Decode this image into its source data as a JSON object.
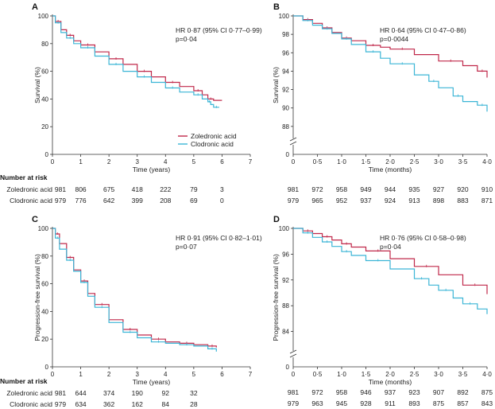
{
  "colors": {
    "zoledronic": "#c0284a",
    "clodronic": "#3bb5d6",
    "axis": "#333333"
  },
  "chart_data": [
    {
      "type": "line",
      "panel_label": "A",
      "xlabel": "Time (years)",
      "ylabel": "Survival (%)",
      "xlim": [
        0,
        7
      ],
      "ylim": [
        0,
        100
      ],
      "xticks": [
        0,
        1,
        2,
        3,
        4,
        5,
        6,
        7
      ],
      "xtick_labels": [
        "0",
        "1",
        "2",
        "3",
        "4",
        "5",
        "6",
        "7"
      ],
      "yticks": [
        0,
        20,
        40,
        60,
        80,
        100
      ],
      "ytick_labels": [
        "0",
        "20",
        "40",
        "60",
        "80",
        "100"
      ],
      "break": false,
      "annotation": [
        "HR 0·87 (95% CI 0·77–0·99)",
        "p=0·04"
      ],
      "legend": [
        "Zoledronic acid",
        "Clodronic acid"
      ],
      "series": [
        {
          "name": "Zoledronic acid",
          "color_key": "zoledronic",
          "x": [
            0,
            0.1,
            0.3,
            0.5,
            0.75,
            1,
            1.5,
            2,
            2.5,
            3,
            3.5,
            4,
            4.5,
            5,
            5.3,
            5.5,
            5.7,
            6
          ],
          "y": [
            100,
            96,
            90,
            86,
            82,
            79,
            74,
            69,
            65,
            60,
            56,
            52,
            49,
            46,
            43,
            40,
            39,
            39
          ]
        },
        {
          "name": "Clodronic acid",
          "color_key": "clodronic",
          "x": [
            0,
            0.1,
            0.3,
            0.5,
            0.75,
            1,
            1.5,
            2,
            2.5,
            3,
            3.5,
            4,
            4.5,
            5,
            5.3,
            5.5,
            5.6,
            5.7,
            5.9
          ],
          "y": [
            100,
            95,
            88,
            84,
            80,
            77,
            71,
            65,
            60,
            56,
            52,
            48,
            45,
            43,
            40,
            38,
            36,
            34,
            34
          ]
        }
      ],
      "risk_table": {
        "title": "Number at risk",
        "times": [
          0,
          1,
          2,
          3,
          4,
          5,
          6
        ],
        "rows": [
          {
            "label": "Zoledronic acid",
            "values": [
              "981",
              "806",
              "675",
              "418",
              "222",
              "79",
              "3"
            ]
          },
          {
            "label": "Clodronic acid",
            "values": [
              "979",
              "776",
              "642",
              "399",
              "208",
              "69",
              "0"
            ]
          }
        ]
      }
    },
    {
      "type": "line",
      "panel_label": "B",
      "xlabel": "Time (months)",
      "ylabel": "Survival (%)",
      "xlim": [
        0,
        4
      ],
      "ylim": [
        86,
        100
      ],
      "xticks": [
        0,
        0.5,
        1,
        1.5,
        2,
        2.5,
        3,
        3.5,
        4
      ],
      "xtick_labels": [
        "0",
        "0·5",
        "1·0",
        "1·5",
        "2·0",
        "2·5",
        "3·0",
        "3·5",
        "4·0"
      ],
      "yticks": [
        88,
        90,
        92,
        94,
        96,
        98,
        100
      ],
      "ytick_labels": [
        "88",
        "90",
        "92",
        "94",
        "96",
        "98",
        "100"
      ],
      "break": true,
      "annotation": [
        "HR 0·64 (95% CI 0·47–0·86)",
        "p=0·0044"
      ],
      "series": [
        {
          "name": "Zoledronic acid",
          "color_key": "zoledronic",
          "x": [
            0,
            0.2,
            0.4,
            0.6,
            0.8,
            1,
            1.2,
            1.5,
            1.8,
            2,
            2.5,
            3,
            3.5,
            3.8,
            4
          ],
          "y": [
            100,
            99.6,
            99.2,
            98.7,
            98.2,
            97.6,
            97.3,
            96.8,
            96.6,
            96.4,
            95.8,
            95.1,
            94.6,
            94,
            93.3
          ]
        },
        {
          "name": "Clodronic acid",
          "color_key": "clodronic",
          "x": [
            0,
            0.2,
            0.4,
            0.6,
            0.8,
            1,
            1.2,
            1.5,
            1.8,
            2,
            2.5,
            2.8,
            3,
            3.3,
            3.5,
            3.8,
            4
          ],
          "y": [
            100,
            99.5,
            99,
            98.6,
            98.1,
            97.5,
            96.9,
            96.1,
            95.4,
            94.8,
            93.6,
            92.9,
            92.2,
            91.3,
            90.7,
            90.3,
            89.6
          ]
        }
      ],
      "risk_table": {
        "times": [
          0,
          0.5,
          1,
          1.5,
          2,
          2.5,
          3,
          3.5,
          4
        ],
        "rows": [
          {
            "label": "Zoledronic acid",
            "values": [
              "981",
              "972",
              "958",
              "949",
              "944",
              "935",
              "927",
              "920",
              "910"
            ]
          },
          {
            "label": "Clodronic acid",
            "values": [
              "979",
              "965",
              "952",
              "937",
              "924",
              "913",
              "898",
              "883",
              "871"
            ]
          }
        ]
      }
    },
    {
      "type": "line",
      "panel_label": "C",
      "xlabel": "Time (years)",
      "ylabel": "Progression-free survival (%)",
      "xlim": [
        0,
        7
      ],
      "ylim": [
        0,
        100
      ],
      "xticks": [
        0,
        1,
        2,
        3,
        4,
        5,
        6,
        7
      ],
      "xtick_labels": [
        "0",
        "1",
        "2",
        "3",
        "4",
        "5",
        "6",
        "7"
      ],
      "yticks": [
        0,
        20,
        40,
        60,
        80,
        100
      ],
      "ytick_labels": [
        "0",
        "20",
        "40",
        "60",
        "80",
        "100"
      ],
      "break": false,
      "annotation": [
        "HR 0·91 (95% CI 0·82–1·01)",
        "p=0·07"
      ],
      "series": [
        {
          "name": "Zoledronic acid",
          "color_key": "zoledronic",
          "x": [
            0,
            0.1,
            0.25,
            0.5,
            0.75,
            1,
            1.25,
            1.5,
            2,
            2.5,
            3,
            3.5,
            4,
            4.5,
            5,
            5.5,
            5.8
          ],
          "y": [
            100,
            96,
            89,
            79,
            70,
            62,
            53,
            45,
            34,
            27,
            23,
            20,
            18,
            17,
            16,
            15,
            14
          ]
        },
        {
          "name": "Clodronic acid",
          "color_key": "clodronic",
          "x": [
            0,
            0.1,
            0.25,
            0.5,
            0.75,
            1,
            1.25,
            1.5,
            2,
            2.5,
            3,
            3.5,
            4,
            4.5,
            5,
            5.5,
            5.8
          ],
          "y": [
            100,
            93,
            85,
            77,
            69,
            61,
            51,
            43,
            32,
            25,
            21,
            18,
            17,
            16,
            15,
            13,
            11
          ]
        }
      ],
      "risk_table": {
        "title": "Number at risk",
        "times": [
          0,
          1,
          2,
          3,
          4,
          5
        ],
        "rows": [
          {
            "label": "Zoledronic acid",
            "values": [
              "981",
              "644",
              "374",
              "190",
              "92",
              "32"
            ]
          },
          {
            "label": "Clodronic acid",
            "values": [
              "979",
              "634",
              "362",
              "162",
              "84",
              "28"
            ]
          }
        ]
      }
    },
    {
      "type": "line",
      "panel_label": "D",
      "xlabel": "Time (months)",
      "ylabel": "Progression-free survival (%)",
      "xlim": [
        0,
        4
      ],
      "ylim": [
        80,
        100
      ],
      "xticks": [
        0,
        0.5,
        1,
        1.5,
        2,
        2.5,
        3,
        3.5,
        4
      ],
      "xtick_labels": [
        "0",
        "0·5",
        "1·0",
        "1·5",
        "2·0",
        "2·5",
        "3·0",
        "3·5",
        "4·0"
      ],
      "yticks": [
        84,
        88,
        92,
        96,
        100
      ],
      "ytick_labels": [
        "84",
        "88",
        "92",
        "96",
        "100"
      ],
      "break": true,
      "annotation": [
        "HR 0·76 (95% CI 0·58–0·98)",
        "p=0·04"
      ],
      "series": [
        {
          "name": "Zoledronic acid",
          "color_key": "zoledronic",
          "x": [
            0,
            0.2,
            0.4,
            0.6,
            0.8,
            1,
            1.2,
            1.5,
            2,
            2.5,
            3,
            3.5,
            4
          ],
          "y": [
            100,
            99.6,
            99.2,
            98.7,
            98.2,
            97.6,
            97.1,
            96.5,
            95.3,
            94.1,
            92.8,
            91.2,
            89.8
          ]
        },
        {
          "name": "Clodronic acid",
          "color_key": "clodronic",
          "x": [
            0,
            0.2,
            0.4,
            0.6,
            0.8,
            1,
            1.2,
            1.5,
            2,
            2.5,
            2.8,
            3,
            3.3,
            3.5,
            3.8,
            4
          ],
          "y": [
            100,
            99.3,
            98.6,
            97.9,
            97.2,
            96.4,
            95.8,
            95,
            93.7,
            92.2,
            91.2,
            90.4,
            89.2,
            88.3,
            87.5,
            86.7
          ]
        }
      ],
      "risk_table": {
        "times": [
          0,
          0.5,
          1,
          1.5,
          2,
          2.5,
          3,
          3.5,
          4
        ],
        "rows": [
          {
            "label": "Zoledronic acid",
            "values": [
              "981",
              "972",
              "958",
              "946",
              "937",
              "923",
              "907",
              "892",
              "875"
            ]
          },
          {
            "label": "Clodronic acid",
            "values": [
              "979",
              "963",
              "945",
              "928",
              "911",
              "893",
              "875",
              "857",
              "843"
            ]
          }
        ]
      }
    }
  ]
}
